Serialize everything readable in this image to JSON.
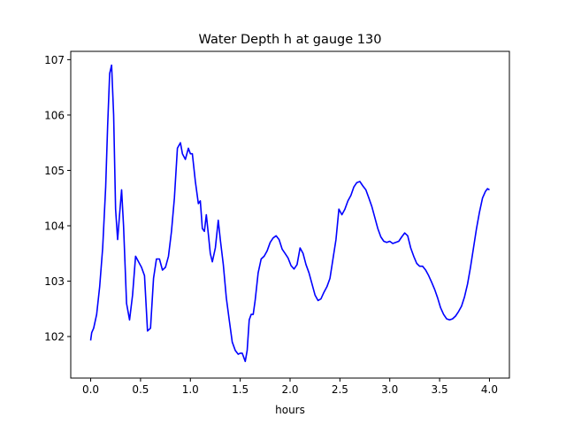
{
  "chart_data": {
    "type": "line",
    "title": "Water Depth h at gauge 130",
    "xlabel": "hours",
    "ylabel": "",
    "xlim": [
      -0.2,
      4.2
    ],
    "ylim": [
      101.25,
      107.15
    ],
    "xticks": [
      0.0,
      0.5,
      1.0,
      1.5,
      2.0,
      2.5,
      3.0,
      3.5,
      4.0
    ],
    "xtick_labels": [
      "0.0",
      "0.5",
      "1.0",
      "1.5",
      "2.0",
      "2.5",
      "3.0",
      "3.5",
      "4.0"
    ],
    "yticks": [
      102,
      103,
      104,
      105,
      106,
      107
    ],
    "ytick_labels": [
      "102",
      "103",
      "104",
      "105",
      "106",
      "107"
    ],
    "grid": false,
    "legend": "none",
    "series": [
      {
        "color": "#0000ff",
        "x": [
          0.0,
          0.01,
          0.03,
          0.06,
          0.09,
          0.12,
          0.15,
          0.17,
          0.19,
          0.21,
          0.23,
          0.25,
          0.27,
          0.29,
          0.31,
          0.33,
          0.36,
          0.39,
          0.42,
          0.45,
          0.48,
          0.51,
          0.54,
          0.57,
          0.6,
          0.63,
          0.66,
          0.69,
          0.72,
          0.75,
          0.78,
          0.81,
          0.84,
          0.87,
          0.9,
          0.92,
          0.95,
          0.98,
          1.0,
          1.02,
          1.05,
          1.08,
          1.1,
          1.12,
          1.14,
          1.16,
          1.18,
          1.2,
          1.22,
          1.25,
          1.28,
          1.3,
          1.33,
          1.36,
          1.39,
          1.42,
          1.45,
          1.48,
          1.5,
          1.52,
          1.55,
          1.57,
          1.59,
          1.61,
          1.63,
          1.65,
          1.68,
          1.71,
          1.74,
          1.77,
          1.8,
          1.83,
          1.86,
          1.89,
          1.92,
          1.95,
          1.98,
          2.01,
          2.04,
          2.07,
          2.1,
          2.13,
          2.16,
          2.19,
          2.22,
          2.25,
          2.28,
          2.31,
          2.34,
          2.37,
          2.4,
          2.43,
          2.46,
          2.49,
          2.52,
          2.55,
          2.58,
          2.61,
          2.64,
          2.67,
          2.7,
          2.73,
          2.76,
          2.79,
          2.82,
          2.85,
          2.88,
          2.91,
          2.94,
          2.97,
          3.0,
          3.03,
          3.06,
          3.09,
          3.12,
          3.15,
          3.18,
          3.21,
          3.24,
          3.27,
          3.3,
          3.33,
          3.36,
          3.39,
          3.42,
          3.45,
          3.48,
          3.51,
          3.54,
          3.57,
          3.6,
          3.63,
          3.66,
          3.69,
          3.72,
          3.75,
          3.78,
          3.81,
          3.84,
          3.87,
          3.9,
          3.93,
          3.96,
          3.98,
          4.0
        ],
        "y": [
          101.93,
          102.07,
          102.15,
          102.4,
          102.9,
          103.6,
          104.7,
          105.8,
          106.75,
          106.9,
          106.0,
          104.3,
          103.75,
          104.2,
          104.65,
          104.0,
          102.6,
          102.3,
          102.75,
          103.45,
          103.35,
          103.25,
          103.1,
          102.1,
          102.15,
          103.05,
          103.4,
          103.4,
          103.2,
          103.25,
          103.45,
          103.9,
          104.5,
          105.4,
          105.5,
          105.3,
          105.2,
          105.4,
          105.3,
          105.3,
          104.8,
          104.4,
          104.45,
          103.95,
          103.9,
          104.2,
          103.85,
          103.5,
          103.35,
          103.6,
          104.1,
          103.75,
          103.3,
          102.7,
          102.3,
          101.9,
          101.75,
          101.68,
          101.7,
          101.7,
          101.55,
          101.75,
          102.3,
          102.4,
          102.4,
          102.65,
          103.15,
          103.4,
          103.45,
          103.55,
          103.7,
          103.78,
          103.82,
          103.75,
          103.58,
          103.5,
          103.42,
          103.28,
          103.22,
          103.3,
          103.6,
          103.5,
          103.3,
          103.15,
          102.95,
          102.75,
          102.65,
          102.68,
          102.8,
          102.9,
          103.05,
          103.4,
          103.75,
          104.3,
          104.2,
          104.3,
          104.45,
          104.55,
          104.7,
          104.78,
          104.8,
          104.72,
          104.65,
          104.5,
          104.35,
          104.15,
          103.95,
          103.8,
          103.72,
          103.7,
          103.72,
          103.68,
          103.7,
          103.72,
          103.8,
          103.87,
          103.82,
          103.6,
          103.45,
          103.32,
          103.27,
          103.27,
          103.2,
          103.1,
          102.98,
          102.85,
          102.7,
          102.52,
          102.4,
          102.32,
          102.3,
          102.32,
          102.37,
          102.45,
          102.55,
          102.72,
          102.95,
          103.25,
          103.6,
          103.95,
          104.25,
          104.5,
          104.62,
          104.67,
          104.65
        ]
      }
    ]
  }
}
